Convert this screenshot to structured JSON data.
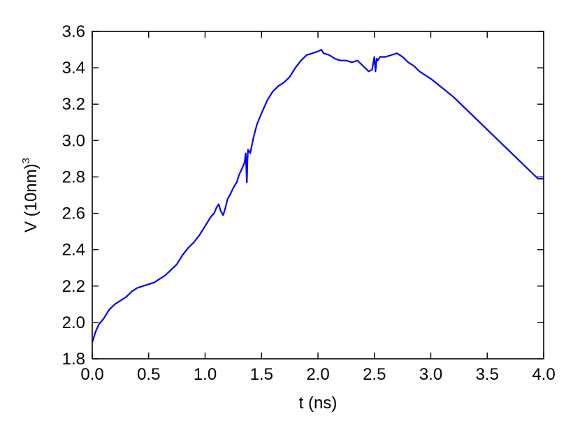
{
  "chart_data": {
    "type": "line",
    "title": "",
    "xlabel": "t (ns)",
    "ylabel": {
      "text": "V (10nm)",
      "superscript": "3"
    },
    "xlim": [
      0.0,
      4.0
    ],
    "ylim": [
      1.8,
      3.6
    ],
    "xticks": [
      "0.0",
      "0.5",
      "1.0",
      "1.5",
      "2.0",
      "2.5",
      "3.0",
      "3.5",
      "4.0"
    ],
    "yticks": [
      "1.8",
      "2.0",
      "2.2",
      "2.4",
      "2.6",
      "2.8",
      "3.0",
      "3.2",
      "3.4",
      "3.6"
    ],
    "grid": false,
    "legend": "none",
    "series": [
      {
        "color": "#0000ff",
        "x": [
          0.0,
          0.03,
          0.06,
          0.1,
          0.15,
          0.2,
          0.25,
          0.3,
          0.35,
          0.4,
          0.45,
          0.5,
          0.55,
          0.6,
          0.65,
          0.7,
          0.75,
          0.8,
          0.85,
          0.9,
          0.95,
          1.0,
          1.05,
          1.08,
          1.1,
          1.12,
          1.14,
          1.16,
          1.18,
          1.2,
          1.22,
          1.25,
          1.28,
          1.3,
          1.33,
          1.35,
          1.36,
          1.37,
          1.375,
          1.38,
          1.4,
          1.43,
          1.46,
          1.5,
          1.55,
          1.6,
          1.65,
          1.7,
          1.75,
          1.8,
          1.85,
          1.9,
          1.95,
          2.0,
          2.03,
          2.05,
          2.1,
          2.15,
          2.2,
          2.25,
          2.3,
          2.35,
          2.4,
          2.45,
          2.48,
          2.5,
          2.51,
          2.52,
          2.53,
          2.55,
          2.6,
          2.65,
          2.7,
          2.75,
          2.8,
          2.85,
          2.9,
          2.95,
          3.0,
          3.1,
          3.2,
          3.3,
          3.4,
          3.5,
          3.6,
          3.7,
          3.8,
          3.9,
          3.95,
          4.0
        ],
        "y": [
          1.89,
          1.95,
          1.99,
          2.02,
          2.07,
          2.1,
          2.12,
          2.14,
          2.17,
          2.19,
          2.2,
          2.21,
          2.22,
          2.24,
          2.26,
          2.29,
          2.32,
          2.37,
          2.41,
          2.44,
          2.48,
          2.53,
          2.58,
          2.6,
          2.63,
          2.65,
          2.61,
          2.59,
          2.63,
          2.68,
          2.7,
          2.74,
          2.77,
          2.81,
          2.85,
          2.88,
          2.93,
          2.77,
          2.88,
          2.95,
          2.93,
          3.02,
          3.09,
          3.15,
          3.22,
          3.27,
          3.3,
          3.32,
          3.35,
          3.4,
          3.44,
          3.47,
          3.48,
          3.49,
          3.5,
          3.48,
          3.47,
          3.45,
          3.44,
          3.44,
          3.43,
          3.44,
          3.41,
          3.38,
          3.39,
          3.46,
          3.38,
          3.45,
          3.44,
          3.46,
          3.46,
          3.47,
          3.48,
          3.46,
          3.43,
          3.41,
          3.38,
          3.36,
          3.34,
          3.29,
          3.24,
          3.18,
          3.12,
          3.06,
          3.0,
          2.94,
          2.88,
          2.82,
          2.79,
          2.79
        ]
      }
    ]
  }
}
